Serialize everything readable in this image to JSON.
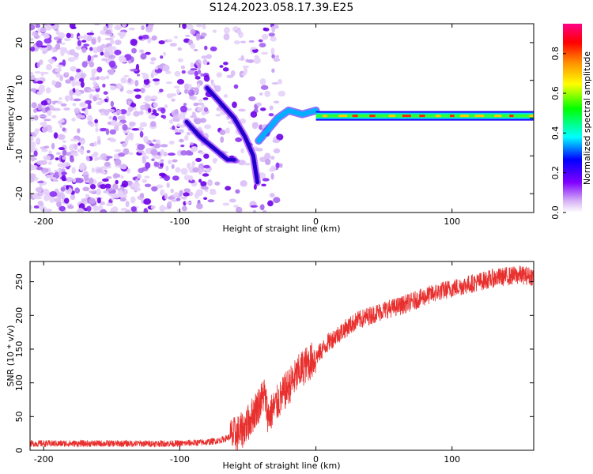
{
  "figure_title": "S124.2023.058.17.39.E25",
  "chart_data": [
    {
      "type": "heatmap",
      "title": "",
      "xlabel": "Height of straight line (km)",
      "ylabel": "Frequency (Hz)",
      "xlim": [
        -210,
        160
      ],
      "ylim": [
        -25,
        25
      ],
      "x_ticks": [
        -200,
        -100,
        0,
        100
      ],
      "y_ticks": [
        -20,
        -10,
        0,
        10,
        20
      ],
      "grid": false,
      "colorbar": {
        "label": "Normalized spectral amplitude",
        "range": [
          0.0,
          0.95
        ],
        "ticks": [
          0.0,
          0.2,
          0.4,
          0.6,
          0.8
        ],
        "colors": [
          "#ffffff",
          "#d7b4f5",
          "#7f00ff",
          "#0000ff",
          "#00ffff",
          "#00ff00",
          "#ffff00",
          "#ff8800",
          "#ff0000",
          "#ff0088"
        ]
      },
      "features": {
        "noise_region_km": [
          -210,
          -45
        ],
        "descending_trace_1": [
          [
            -80,
            8
          ],
          [
            -70,
            4
          ],
          [
            -60,
            0
          ],
          [
            -52,
            -5
          ],
          [
            -46,
            -10
          ],
          [
            -43,
            -17
          ]
        ],
        "descending_trace_2": [
          [
            -95,
            -1
          ],
          [
            -85,
            -5
          ],
          [
            -75,
            -8
          ],
          [
            -65,
            -11
          ],
          [
            -60,
            -11
          ]
        ],
        "rising_trace": [
          [
            -42,
            -6
          ],
          [
            -35,
            -3
          ],
          [
            -28,
            0
          ],
          [
            -20,
            2
          ],
          [
            -10,
            1
          ],
          [
            0,
            2
          ]
        ],
        "carrier_line": {
          "x_start": 0,
          "x_end": 160,
          "frequency_hz": 0.6
        }
      }
    },
    {
      "type": "line",
      "title": "",
      "xlabel": "Height of straight line (km)",
      "ylabel": "SNR (10 * v/v)",
      "xlim": [
        -210,
        160
      ],
      "ylim": [
        0,
        280
      ],
      "x_ticks": [
        -200,
        -100,
        0,
        100
      ],
      "y_ticks": [
        0,
        50,
        100,
        150,
        200,
        250
      ],
      "grid": false,
      "series": [
        {
          "color": "#e8302e",
          "x": [
            -210,
            -180,
            -150,
            -120,
            -100,
            -80,
            -70,
            -60,
            -55,
            -50,
            -45,
            -40,
            -38,
            -35,
            -30,
            -25,
            -20,
            -15,
            -10,
            -5,
            0,
            10,
            20,
            30,
            40,
            50,
            60,
            70,
            80,
            90,
            100,
            110,
            120,
            130,
            140,
            150,
            160
          ],
          "y": [
            10,
            10,
            10,
            10,
            10,
            12,
            15,
            22,
            28,
            40,
            58,
            75,
            85,
            50,
            65,
            80,
            95,
            108,
            122,
            130,
            138,
            162,
            178,
            192,
            200,
            208,
            213,
            220,
            228,
            235,
            240,
            245,
            250,
            255,
            258,
            260,
            258
          ]
        }
      ]
    }
  ]
}
